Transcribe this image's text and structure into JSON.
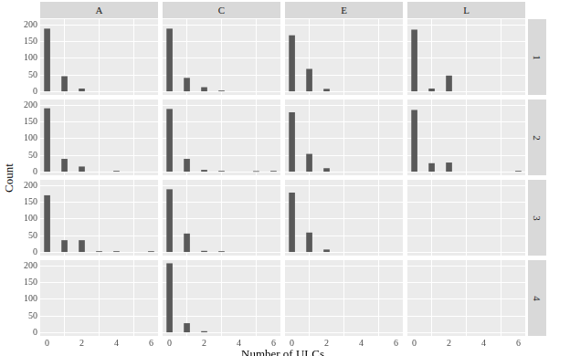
{
  "chart_data": {
    "type": "bar",
    "x_label": "Number of ULCs",
    "y_label": "Count",
    "xlim": [
      -0.4,
      6.4
    ],
    "xticks": [
      0,
      2,
      4,
      6
    ],
    "ylim": [
      -10.35,
      217.35
    ],
    "yticks": [
      0,
      50,
      100,
      150,
      200
    ],
    "grid": true,
    "color": "#595959",
    "columns": [
      "A",
      "C",
      "E",
      "L"
    ],
    "rows": [
      "1",
      "2",
      "3",
      "4"
    ],
    "panels": [
      {
        "column": "A",
        "row": "1",
        "x": [
          0,
          1,
          2
        ],
        "values": [
          188,
          45,
          8
        ]
      },
      {
        "column": "C",
        "row": "1",
        "x": [
          0,
          1,
          2,
          3
        ],
        "values": [
          188,
          40,
          12,
          2
        ]
      },
      {
        "column": "E",
        "row": "1",
        "x": [
          0,
          1,
          2
        ],
        "values": [
          168,
          67,
          7
        ]
      },
      {
        "column": "L",
        "row": "1",
        "x": [
          0,
          1,
          2
        ],
        "values": [
          185,
          8,
          47
        ]
      },
      {
        "column": "A",
        "row": "2",
        "x": [
          0,
          1,
          2,
          4
        ],
        "values": [
          190,
          38,
          15,
          2
        ]
      },
      {
        "column": "C",
        "row": "2",
        "x": [
          0,
          1,
          2,
          3,
          5,
          6
        ],
        "values": [
          188,
          38,
          5,
          2,
          1,
          2
        ]
      },
      {
        "column": "E",
        "row": "2",
        "x": [
          0,
          1,
          2
        ],
        "values": [
          178,
          53,
          10
        ]
      },
      {
        "column": "L",
        "row": "2",
        "x": [
          0,
          1,
          2,
          6
        ],
        "values": [
          185,
          25,
          27,
          2
        ]
      },
      {
        "column": "A",
        "row": "3",
        "x": [
          0,
          1,
          2,
          3,
          4,
          6
        ],
        "values": [
          170,
          35,
          35,
          2,
          2,
          2
        ]
      },
      {
        "column": "C",
        "row": "3",
        "x": [
          0,
          1,
          2,
          3
        ],
        "values": [
          188,
          55,
          3,
          2
        ]
      },
      {
        "column": "E",
        "row": "3",
        "x": [
          0,
          1,
          2
        ],
        "values": [
          178,
          58,
          7
        ]
      },
      {
        "column": "C",
        "row": "4",
        "x": [
          0,
          1,
          2
        ],
        "values": [
          207,
          27,
          3
        ]
      }
    ]
  }
}
